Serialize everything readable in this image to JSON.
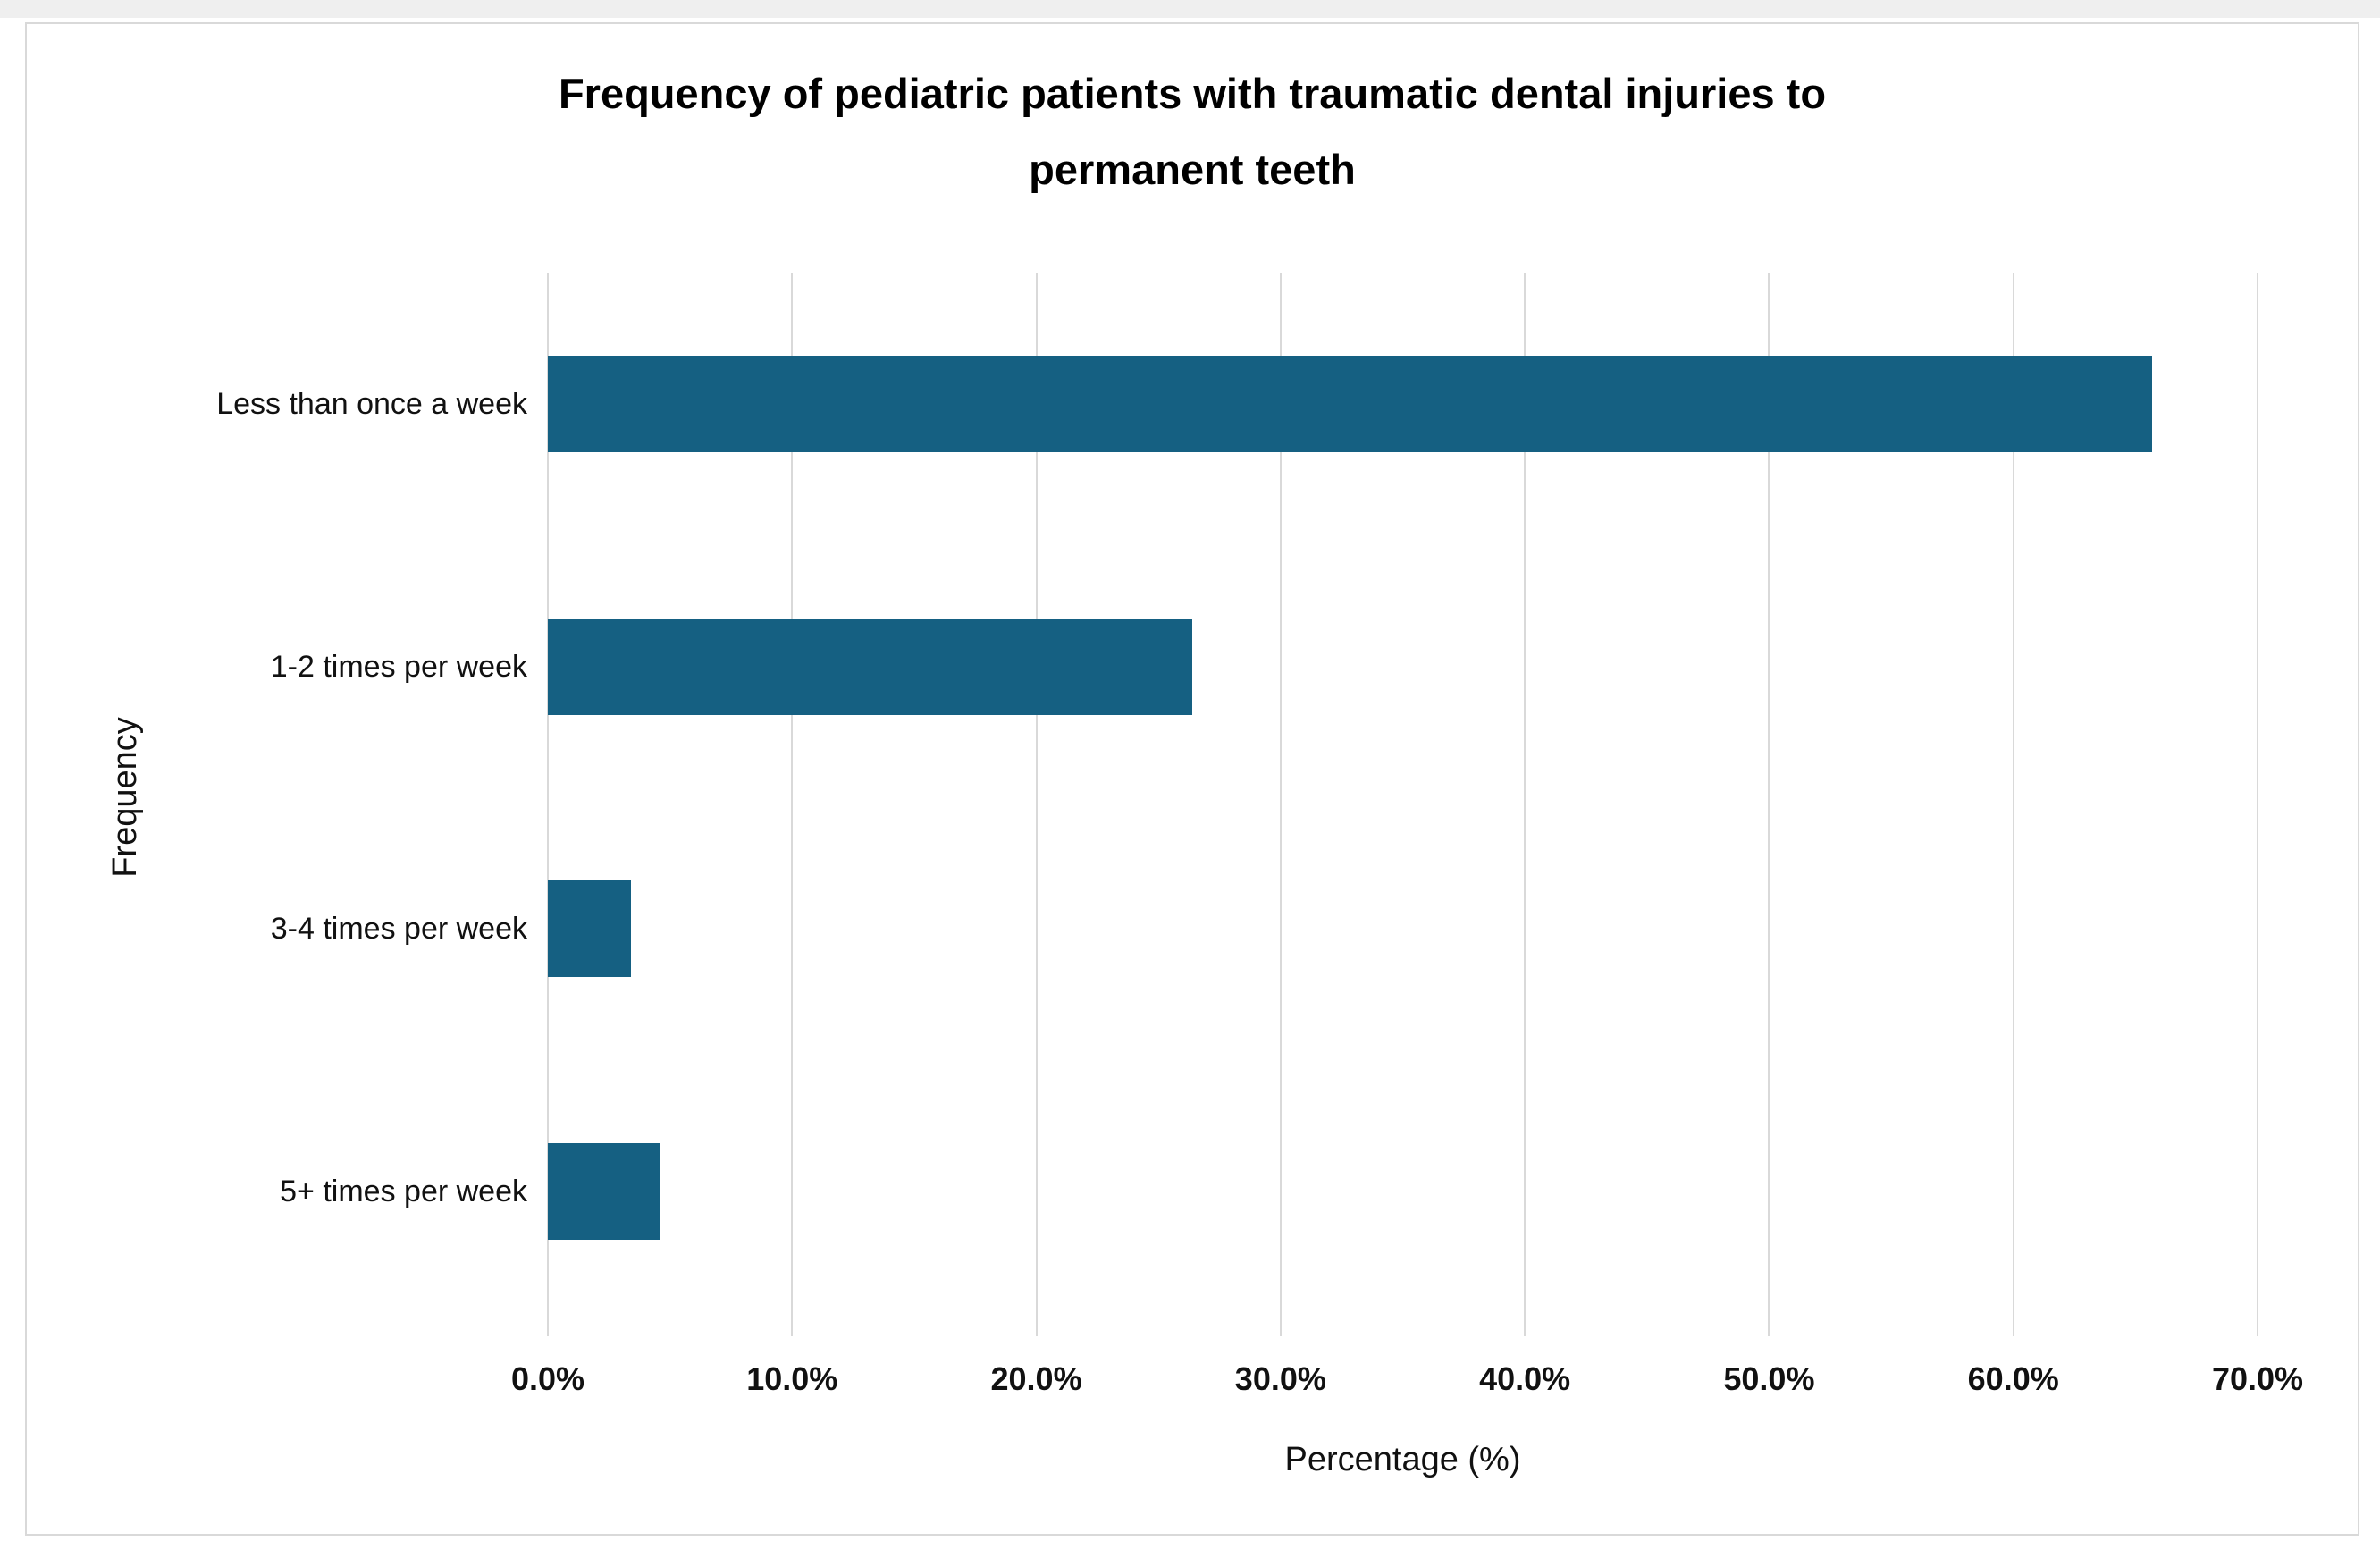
{
  "chart_data": {
    "type": "bar",
    "orientation": "horizontal",
    "title": "Frequency of pediatric patients with traumatic dental injuries to permanent teeth",
    "title_lines": [
      "Frequency of pediatric patients with traumatic dental injuries to",
      "permanent teeth"
    ],
    "categories": [
      "Less than once a week",
      "1-2 times per week",
      "3-4 times per week",
      "5+ times per week"
    ],
    "values": [
      65.7,
      26.4,
      3.4,
      4.6
    ],
    "value_unit": "%",
    "xlabel": "Percentage (%)",
    "ylabel": "Frequency",
    "xlim": [
      0,
      70
    ],
    "xtick_labels": [
      "0.0%",
      "10.0%",
      "20.0%",
      "30.0%",
      "40.0%",
      "50.0%",
      "60.0%",
      "70.0%"
    ],
    "grid": true,
    "legend": "none",
    "colors": {
      "bar": "#156082",
      "gridline": "#d9d9d9",
      "card_border": "#d9d9d9",
      "text": "#000000",
      "background": "#ffffff"
    }
  }
}
